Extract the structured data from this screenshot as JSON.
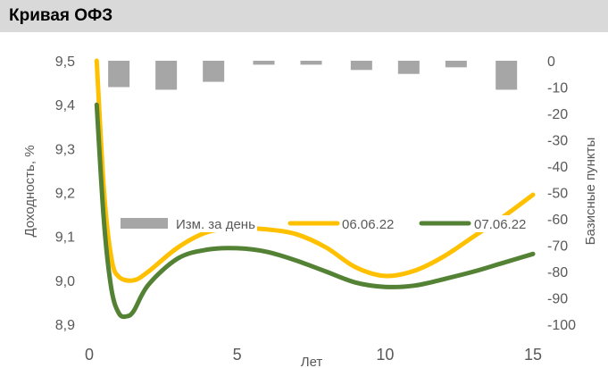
{
  "title": "Кривая ОФЗ",
  "chart_data": {
    "type": "line",
    "title": "Кривая ОФЗ",
    "xlabel": "Лет",
    "ylabel": "Доходность, %",
    "y2label": "Базисные пункты",
    "xlim": [
      0,
      15
    ],
    "ylim": [
      8.9,
      9.5
    ],
    "y2lim": [
      -100,
      0
    ],
    "x_ticks": [
      "0",
      "5",
      "10",
      "15"
    ],
    "y_ticks": [
      "9,5",
      "9,4",
      "9,3",
      "9,2",
      "9,1",
      "9,0",
      "8,9"
    ],
    "y2_ticks": [
      "0",
      "-10",
      "-20",
      "-30",
      "-40",
      "-50",
      "-60",
      "-70",
      "-80",
      "-90",
      "-100"
    ],
    "legend_position": "middle",
    "bars": {
      "name": "Изм. за день",
      "color": "#a6a6a6",
      "axis": "right",
      "x": [
        1,
        2.6,
        4.2,
        5.9,
        7.5,
        9.2,
        10.8,
        12.4,
        14.1
      ],
      "values": [
        -10,
        -11,
        -8,
        -1.5,
        -1.5,
        -3.5,
        -5,
        -2.5,
        -11
      ]
    },
    "series": [
      {
        "name": "06.06.22",
        "color": "#ffc000",
        "x": [
          0.25,
          0.5,
          0.75,
          1,
          1.5,
          2,
          3,
          4,
          5,
          6,
          7,
          8,
          9,
          10,
          11,
          12,
          13,
          14,
          15
        ],
        "values": [
          9.5,
          9.2,
          9.05,
          9.008,
          9.0,
          9.02,
          9.075,
          9.11,
          9.118,
          9.116,
          9.105,
          9.075,
          9.03,
          9.01,
          9.022,
          9.055,
          9.1,
          9.145,
          9.195
        ]
      },
      {
        "name": "07.06.22",
        "color": "#548235",
        "x": [
          0.25,
          0.5,
          0.75,
          1,
          1.25,
          1.5,
          2,
          3,
          4,
          5,
          6,
          7,
          8,
          9,
          10,
          11,
          12,
          13,
          14,
          15
        ],
        "values": [
          9.4,
          9.13,
          8.98,
          8.925,
          8.918,
          8.93,
          8.99,
          9.05,
          9.07,
          9.073,
          9.065,
          9.045,
          9.02,
          8.995,
          8.985,
          8.988,
          9.003,
          9.02,
          9.04,
          9.06
        ]
      }
    ]
  }
}
